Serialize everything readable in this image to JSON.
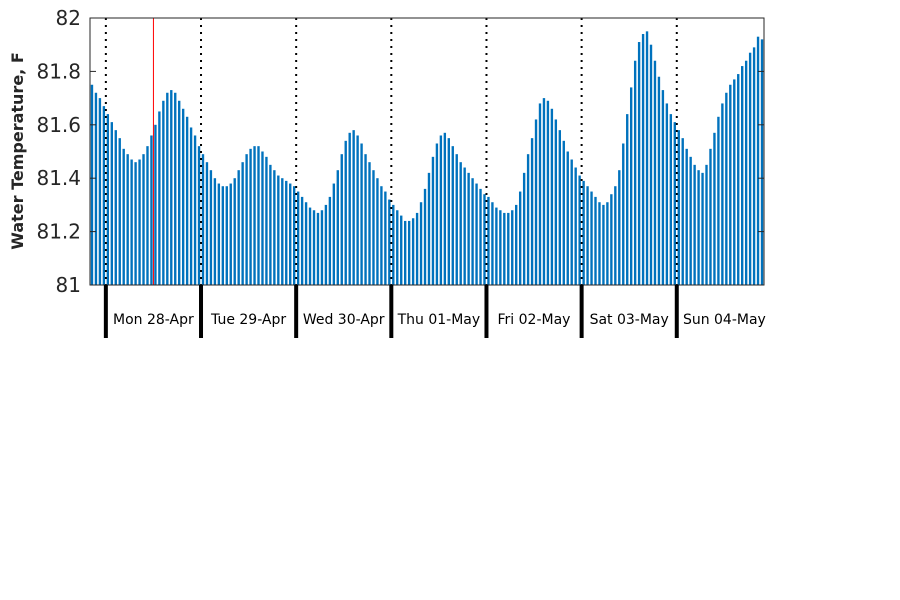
{
  "chart_data": {
    "type": "bar",
    "ylabel": "Water Temperature, F",
    "ylim": [
      81,
      82
    ],
    "yticks": [
      "81",
      "81.2",
      "81.4",
      "81.6",
      "81.8",
      "82"
    ],
    "x_range": [
      "2025-04-27T20:00",
      "2025-05-04T22:00"
    ],
    "interval_hours": 1,
    "bar_color": "#0072bd",
    "marker_color": "#ff0000",
    "marker_time": "2025-04-28T12:00",
    "grid": "dotted vertical lines at midnight",
    "days": [
      {
        "date": "2025-04-28",
        "label": "Mon 28-Apr"
      },
      {
        "date": "2025-04-29",
        "label": "Tue 29-Apr"
      },
      {
        "date": "2025-04-30",
        "label": "Wed 30-Apr"
      },
      {
        "date": "2025-05-01",
        "label": "Thu 01-May"
      },
      {
        "date": "2025-05-02",
        "label": "Fri 02-May"
      },
      {
        "date": "2025-05-03",
        "label": "Sat 03-May"
      },
      {
        "date": "2025-05-04",
        "label": "Sun 04-May"
      }
    ],
    "values": [
      81.75,
      81.72,
      81.7,
      81.67,
      81.64,
      81.61,
      81.58,
      81.55,
      81.51,
      81.49,
      81.47,
      81.46,
      81.47,
      81.49,
      81.52,
      81.56,
      81.6,
      81.65,
      81.69,
      81.72,
      81.73,
      81.72,
      81.69,
      81.66,
      81.63,
      81.59,
      81.56,
      81.52,
      81.49,
      81.46,
      81.43,
      81.4,
      81.38,
      81.37,
      81.37,
      81.38,
      81.4,
      81.43,
      81.46,
      81.49,
      81.51,
      81.52,
      81.52,
      81.5,
      81.48,
      81.45,
      81.43,
      81.41,
      81.4,
      81.39,
      81.38,
      81.37,
      81.35,
      81.33,
      81.31,
      81.29,
      81.28,
      81.27,
      81.28,
      81.3,
      81.33,
      81.38,
      81.43,
      81.49,
      81.54,
      81.57,
      81.58,
      81.56,
      81.53,
      81.49,
      81.46,
      81.43,
      81.4,
      81.37,
      81.35,
      81.32,
      81.3,
      81.28,
      81.26,
      81.24,
      81.24,
      81.25,
      81.27,
      81.31,
      81.36,
      81.42,
      81.48,
      81.53,
      81.56,
      81.57,
      81.55,
      81.52,
      81.49,
      81.46,
      81.44,
      81.42,
      81.4,
      81.38,
      81.36,
      81.34,
      81.33,
      81.31,
      81.29,
      81.28,
      81.27,
      81.27,
      81.28,
      81.3,
      81.35,
      81.42,
      81.49,
      81.55,
      81.62,
      81.68,
      81.7,
      81.69,
      81.66,
      81.62,
      81.58,
      81.54,
      81.5,
      81.47,
      81.44,
      81.41,
      81.39,
      81.37,
      81.35,
      81.33,
      81.31,
      81.3,
      81.31,
      81.34,
      81.37,
      81.43,
      81.53,
      81.64,
      81.74,
      81.84,
      81.91,
      81.94,
      81.95,
      81.9,
      81.84,
      81.78,
      81.73,
      81.68,
      81.64,
      81.61,
      81.58,
      81.55,
      81.51,
      81.48,
      81.45,
      81.43,
      81.42,
      81.45,
      81.51,
      81.57,
      81.63,
      81.68,
      81.72,
      81.75,
      81.77,
      81.79,
      81.82,
      81.84,
      81.87,
      81.89,
      81.93,
      81.92
    ]
  }
}
